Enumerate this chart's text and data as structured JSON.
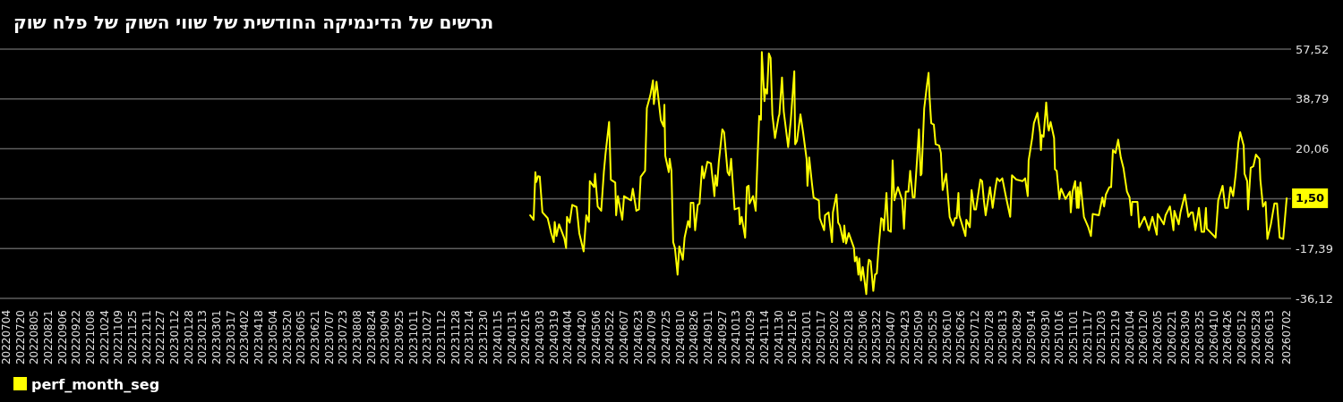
{
  "chart_data": {
    "type": "line",
    "title": "תרשים של הדינמיקה החודשית של שווי השוק של פלח שוק",
    "x": [
      "2024-02-21",
      "2024-02-25",
      "2024-02-27",
      "2024-02-28",
      "2024-03-01",
      "2024-03-03",
      "2024-03-06",
      "2024-03-12",
      "2024-03-16",
      "2024-03-19",
      "2024-03-20",
      "2024-03-22",
      "2024-03-25",
      "2024-03-31",
      "2024-04-02",
      "2024-04-03",
      "2024-04-06",
      "2024-04-09",
      "2024-04-14",
      "2024-04-17",
      "2024-04-22",
      "2024-04-25",
      "2024-04-28",
      "2024-04-29",
      "2024-05-04",
      "2024-05-05",
      "2024-05-08",
      "2024-05-12",
      "2024-05-15",
      "2024-05-17",
      "2024-05-21",
      "2024-05-23",
      "2024-05-28",
      "2024-05-29",
      "2024-05-31",
      "2024-06-05",
      "2024-06-07",
      "2024-06-15",
      "2024-06-17",
      "2024-06-21",
      "2024-06-24",
      "2024-06-26",
      "2024-07-01",
      "2024-07-03",
      "2024-07-07",
      "2024-07-10",
      "2024-07-11",
      "2024-07-14",
      "2024-07-19",
      "2024-07-22",
      "2024-07-23",
      "2024-07-24",
      "2024-07-28",
      "2024-07-29",
      "2024-07-31",
      "2024-08-02",
      "2024-08-04",
      "2024-08-07",
      "2024-08-09",
      "2024-08-13",
      "2024-08-15",
      "2024-08-19",
      "2024-08-21",
      "2024-08-22",
      "2024-08-25",
      "2024-08-27",
      "2024-08-30",
      "2024-09-01",
      "2024-09-04",
      "2024-09-06",
      "2024-09-10",
      "2024-09-14",
      "2024-09-18",
      "2024-09-19",
      "2024-09-21",
      "2024-09-23",
      "2024-09-27",
      "2024-09-29",
      "2024-10-03",
      "2024-10-05",
      "2024-10-07",
      "2024-10-11",
      "2024-10-16",
      "2024-10-17",
      "2024-10-19",
      "2024-10-23",
      "2024-10-25",
      "2024-10-27",
      "2024-10-28",
      "2024-11-01",
      "2024-11-04",
      "2024-11-06",
      "2024-11-08",
      "2024-11-10",
      "2024-11-11",
      "2024-11-14",
      "2024-11-15",
      "2024-11-17",
      "2024-11-19",
      "2024-11-21",
      "2024-11-23",
      "2024-11-26",
      "2024-11-30",
      "2024-12-01",
      "2024-12-04",
      "2024-12-06",
      "2024-12-11",
      "2024-12-14",
      "2024-12-18",
      "2024-12-19",
      "2024-12-21",
      "2024-12-25",
      "2024-12-28",
      "2025-01-01",
      "2025-01-02",
      "2025-01-04",
      "2025-01-07",
      "2025-01-09",
      "2025-01-15",
      "2025-01-16",
      "2025-01-21",
      "2025-01-22",
      "2025-01-26",
      "2025-01-30",
      "2025-01-31",
      "2025-02-04",
      "2025-02-06",
      "2025-02-08",
      "2025-02-12",
      "2025-02-13",
      "2025-02-15",
      "2025-02-18",
      "2025-02-24",
      "2025-02-25",
      "2025-02-27",
      "2025-03-01",
      "2025-03-02",
      "2025-03-04",
      "2025-03-06",
      "2025-03-10",
      "2025-03-12",
      "2025-03-13",
      "2025-03-15",
      "2025-03-18",
      "2025-03-20",
      "2025-03-22",
      "2025-03-24",
      "2025-03-27",
      "2025-03-29",
      "2025-03-30",
      "2025-04-02",
      "2025-04-04",
      "2025-04-07",
      "2025-04-09",
      "2025-04-11",
      "2025-04-15",
      "2025-04-20",
      "2025-04-22",
      "2025-04-24",
      "2025-04-27",
      "2025-04-29",
      "2025-05-02",
      "2025-05-04",
      "2025-05-07",
      "2025-05-09",
      "2025-05-11",
      "2025-05-12",
      "2025-05-15",
      "2025-05-18",
      "2025-05-20",
      "2025-05-21",
      "2025-05-23",
      "2025-05-26",
      "2025-05-28",
      "2025-06-01",
      "2025-06-03",
      "2025-06-05",
      "2025-06-09",
      "2025-06-13",
      "2025-06-17",
      "2025-06-19",
      "2025-06-21",
      "2025-06-23",
      "2025-06-24",
      "2025-07-01",
      "2025-07-02",
      "2025-07-06",
      "2025-07-08",
      "2025-07-11",
      "2025-07-13",
      "2025-07-18",
      "2025-07-20",
      "2025-07-22",
      "2025-07-24",
      "2025-07-29",
      "2025-08-01",
      "2025-08-04",
      "2025-08-06",
      "2025-08-09",
      "2025-08-12",
      "2025-08-16",
      "2025-08-21",
      "2025-08-23",
      "2025-08-28",
      "2025-09-04",
      "2025-09-07",
      "2025-09-10",
      "2025-09-11",
      "2025-09-15",
      "2025-09-17",
      "2025-09-21",
      "2025-09-24",
      "2025-09-25",
      "2025-09-26",
      "2025-09-28",
      "2025-10-01",
      "2025-10-03",
      "2025-10-04",
      "2025-10-06",
      "2025-10-10",
      "2025-10-11",
      "2025-10-13",
      "2025-10-16",
      "2025-10-18",
      "2025-10-23",
      "2025-10-28",
      "2025-10-29",
      "2025-10-31",
      "2025-11-03",
      "2025-11-05",
      "2025-11-06",
      "2025-11-07",
      "2025-11-09",
      "2025-11-13",
      "2025-11-18",
      "2025-11-21",
      "2025-11-23",
      "2025-11-30",
      "2025-12-04",
      "2025-12-06",
      "2025-12-08",
      "2025-12-12",
      "2025-12-14",
      "2025-12-16",
      "2025-12-19",
      "2025-12-22",
      "2025-12-25",
      "2025-12-28",
      "2026-01-01",
      "2026-01-04",
      "2026-01-06",
      "2026-01-07",
      "2026-01-13",
      "2026-01-15",
      "2026-01-21",
      "2026-01-26",
      "2026-01-30",
      "2026-02-04",
      "2026-02-05",
      "2026-02-12",
      "2026-02-14",
      "2026-02-19",
      "2026-02-23",
      "2026-02-24",
      "2026-03-01",
      "2026-03-03",
      "2026-03-08",
      "2026-03-12",
      "2026-03-15",
      "2026-03-17",
      "2026-03-20",
      "2026-03-24",
      "2026-03-27",
      "2026-03-30",
      "2026-04-01",
      "2026-04-02",
      "2026-04-12",
      "2026-04-15",
      "2026-04-20",
      "2026-04-23",
      "2026-04-26",
      "2026-04-29",
      "2026-05-02",
      "2026-05-05",
      "2026-05-08",
      "2026-05-10",
      "2026-05-14",
      "2026-05-15",
      "2026-05-18",
      "2026-05-19",
      "2026-05-22",
      "2026-05-25",
      "2026-05-28",
      "2026-06-01",
      "2026-06-02",
      "2026-06-05",
      "2026-06-08",
      "2026-06-10",
      "2026-06-14",
      "2026-06-18",
      "2026-06-21",
      "2026-06-24",
      "2026-06-28",
      "2026-07-02"
    ],
    "series": [
      {
        "name": "perf_month_seg",
        "color": "#ffff00",
        "values": [
          -4.9,
          -6.6,
          11.3,
          7.6,
          9.8,
          9.6,
          -3.8,
          -6.0,
          -11.6,
          -15.0,
          -7.4,
          -12.7,
          -8.3,
          -13.6,
          -17.2,
          -5.5,
          -7.7,
          -1.0,
          -1.8,
          -11.6,
          -18.5,
          -4.9,
          -7.4,
          7.9,
          5.7,
          10.7,
          -1.6,
          -3.2,
          11.3,
          18.5,
          30.2,
          8.5,
          7.4,
          -4.9,
          2.3,
          -6.6,
          2.3,
          0.7,
          5.1,
          -3.2,
          -2.7,
          9.6,
          11.8,
          35.4,
          40.2,
          45.8,
          36.9,
          45.3,
          30.8,
          28.5,
          36.6,
          17.4,
          11.3,
          16.3,
          11.8,
          -15.0,
          -17.2,
          -27.2,
          -16.6,
          -21.6,
          -13.3,
          -7.1,
          -9.4,
          -0.2,
          -0.2,
          -10.5,
          -1.0,
          -0.5,
          13.5,
          9.0,
          15.2,
          14.6,
          2.3,
          10.1,
          6.2,
          15.2,
          27.4,
          26.3,
          11.3,
          10.1,
          16.3,
          -2.7,
          -2.1,
          -8.3,
          -5.5,
          -13.3,
          5.7,
          6.2,
          -0.5,
          2.3,
          -3.2,
          15.7,
          32.4,
          31.0,
          56.4,
          38.0,
          42.5,
          40.8,
          55.9,
          54.2,
          33.0,
          24.1,
          31.9,
          33.0,
          46.9,
          34.1,
          20.7,
          30.8,
          49.2,
          21.8,
          23.0,
          33.0,
          26.3,
          16.3,
          6.2,
          16.8,
          7.4,
          1.8,
          0.7,
          -6.0,
          -10.5,
          -4.9,
          -3.8,
          -15.0,
          -3.8,
          2.9,
          -7.7,
          -8.8,
          -15.0,
          -8.8,
          -15.5,
          -11.6,
          -17.2,
          -22.2,
          -20.5,
          -27.2,
          -21.1,
          -29.4,
          -24.4,
          -34.5,
          -23.9,
          -21.6,
          -22.2,
          -33.3,
          -27.2,
          -26.7,
          -17.2,
          -6.0,
          -6.6,
          -10.5,
          3.5,
          -10.5,
          -11.1,
          15.7,
          0.7,
          5.7,
          0.7,
          -9.9,
          4.0,
          4.0,
          11.8,
          1.8,
          1.8,
          16.8,
          27.4,
          10.1,
          10.7,
          35.2,
          43.6,
          48.6,
          40.2,
          29.7,
          29.1,
          21.8,
          21.3,
          18.5,
          4.6,
          10.7,
          -5.5,
          -8.8,
          -6.0,
          -6.0,
          3.5,
          -4.9,
          -12.7,
          -6.6,
          -9.4,
          4.6,
          -2.7,
          -2.7,
          8.5,
          7.9,
          0.7,
          -4.9,
          5.7,
          -2.1,
          5.1,
          9.0,
          7.9,
          9.0,
          2.3,
          -5.5,
          10.1,
          8.5,
          7.9,
          9.0,
          2.3,
          15.7,
          24.1,
          29.7,
          33.6,
          26.3,
          19.6,
          25.2,
          24.6,
          37.5,
          28.5,
          26.9,
          30.2,
          24.1,
          12.4,
          11.8,
          1.2,
          5.1,
          1.2,
          4.0,
          -3.8,
          4.0,
          7.9,
          -2.1,
          5.7,
          -2.1,
          7.4,
          -5.5,
          -9.4,
          -12.7,
          -4.4,
          -4.9,
          1.8,
          -1.6,
          2.9,
          5.7,
          5.7,
          19.6,
          18.5,
          23.5,
          16.8,
          12.9,
          4.0,
          1.8,
          -4.9,
          0.1,
          0.1,
          -9.4,
          -5.5,
          -10.5,
          -5.5,
          -12.2,
          -4.4,
          -8.3,
          -4.9,
          -1.6,
          -10.5,
          -3.2,
          -8.3,
          -3.8,
          2.9,
          -5.5,
          -3.8,
          -3.8,
          -10.5,
          -2.1,
          -11.1,
          -11.1,
          -2.1,
          -9.9,
          -13.3,
          0.7,
          6.2,
          -2.1,
          -2.1,
          5.7,
          2.3,
          10.7,
          22.4,
          26.3,
          21.3,
          10.7,
          7.9,
          -2.7,
          12.9,
          13.5,
          17.9,
          16.3,
          8.5,
          -1.6,
          0.1,
          -13.8,
          -8.3,
          -0.5,
          -0.5,
          -13.3,
          -13.8,
          1.5
        ]
      }
    ],
    "xlim": [
      "2022-06-27",
      "2026-07-07"
    ],
    "xticks": [
      {
        "value": "2022-07-04",
        "label": "20220704"
      },
      {
        "value": "2022-07-20",
        "label": "20220720"
      },
      {
        "value": "2022-08-05",
        "label": "20220805"
      },
      {
        "value": "2022-08-21",
        "label": "20220821"
      },
      {
        "value": "2022-09-06",
        "label": "20220906"
      },
      {
        "value": "2022-09-22",
        "label": "20220922"
      },
      {
        "value": "2022-10-08",
        "label": "20221008"
      },
      {
        "value": "2022-10-24",
        "label": "20221024"
      },
      {
        "value": "2022-11-09",
        "label": "20221109"
      },
      {
        "value": "2022-11-25",
        "label": "20221125"
      },
      {
        "value": "2022-12-11",
        "label": "20221211"
      },
      {
        "value": "2022-12-27",
        "label": "20221227"
      },
      {
        "value": "2023-01-12",
        "label": "20230112"
      },
      {
        "value": "2023-01-28",
        "label": "20230128"
      },
      {
        "value": "2023-02-13",
        "label": "20230213"
      },
      {
        "value": "2023-03-01",
        "label": "20230301"
      },
      {
        "value": "2023-03-17",
        "label": "20230317"
      },
      {
        "value": "2023-04-02",
        "label": "20230402"
      },
      {
        "value": "2023-04-18",
        "label": "20230418"
      },
      {
        "value": "2023-05-04",
        "label": "20230504"
      },
      {
        "value": "2023-05-20",
        "label": "20230520"
      },
      {
        "value": "2023-06-05",
        "label": "20230605"
      },
      {
        "value": "2023-06-21",
        "label": "20230621"
      },
      {
        "value": "2023-07-07",
        "label": "20230707"
      },
      {
        "value": "2023-07-23",
        "label": "20230723"
      },
      {
        "value": "2023-08-08",
        "label": "20230808"
      },
      {
        "value": "2023-08-24",
        "label": "20230824"
      },
      {
        "value": "2023-09-09",
        "label": "20230909"
      },
      {
        "value": "2023-09-25",
        "label": "20230925"
      },
      {
        "value": "2023-10-11",
        "label": "20231011"
      },
      {
        "value": "2023-10-27",
        "label": "20231027"
      },
      {
        "value": "2023-11-12",
        "label": "20231112"
      },
      {
        "value": "2023-11-28",
        "label": "20231128"
      },
      {
        "value": "2023-12-14",
        "label": "20231214"
      },
      {
        "value": "2023-12-30",
        "label": "20231230"
      },
      {
        "value": "2024-01-15",
        "label": "20240115"
      },
      {
        "value": "2024-01-31",
        "label": "20240131"
      },
      {
        "value": "2024-02-16",
        "label": "20240216"
      },
      {
        "value": "2024-03-03",
        "label": "20240303"
      },
      {
        "value": "2024-03-19",
        "label": "20240319"
      },
      {
        "value": "2024-04-04",
        "label": "20240404"
      },
      {
        "value": "2024-04-20",
        "label": "20240420"
      },
      {
        "value": "2024-05-06",
        "label": "20240506"
      },
      {
        "value": "2024-05-22",
        "label": "20240522"
      },
      {
        "value": "2024-06-07",
        "label": "20240607"
      },
      {
        "value": "2024-06-23",
        "label": "20240623"
      },
      {
        "value": "2024-07-09",
        "label": "20240709"
      },
      {
        "value": "2024-07-25",
        "label": "20240725"
      },
      {
        "value": "2024-08-10",
        "label": "20240810"
      },
      {
        "value": "2024-08-26",
        "label": "20240826"
      },
      {
        "value": "2024-09-11",
        "label": "20240911"
      },
      {
        "value": "2024-09-27",
        "label": "20240927"
      },
      {
        "value": "2024-10-13",
        "label": "20241013"
      },
      {
        "value": "2024-10-29",
        "label": "20241029"
      },
      {
        "value": "2024-11-14",
        "label": "20241114"
      },
      {
        "value": "2024-11-30",
        "label": "20241130"
      },
      {
        "value": "2024-12-16",
        "label": "20241216"
      },
      {
        "value": "2025-01-01",
        "label": "20250101"
      },
      {
        "value": "2025-01-17",
        "label": "20250117"
      },
      {
        "value": "2025-02-02",
        "label": "20250202"
      },
      {
        "value": "2025-02-18",
        "label": "20250218"
      },
      {
        "value": "2025-03-06",
        "label": "20250306"
      },
      {
        "value": "2025-03-22",
        "label": "20250322"
      },
      {
        "value": "2025-04-07",
        "label": "20250407"
      },
      {
        "value": "2025-04-23",
        "label": "20250423"
      },
      {
        "value": "2025-05-09",
        "label": "20250509"
      },
      {
        "value": "2025-05-25",
        "label": "20250525"
      },
      {
        "value": "2025-06-10",
        "label": "20250610"
      },
      {
        "value": "2025-06-26",
        "label": "20250626"
      },
      {
        "value": "2025-07-12",
        "label": "20250712"
      },
      {
        "value": "2025-07-28",
        "label": "20250728"
      },
      {
        "value": "2025-08-13",
        "label": "20250813"
      },
      {
        "value": "2025-08-29",
        "label": "20250829"
      },
      {
        "value": "2025-09-14",
        "label": "20250914"
      },
      {
        "value": "2025-09-30",
        "label": "20250930"
      },
      {
        "value": "2025-10-16",
        "label": "20251016"
      },
      {
        "value": "2025-11-01",
        "label": "20251101"
      },
      {
        "value": "2025-11-17",
        "label": "20251117"
      },
      {
        "value": "2025-12-03",
        "label": "20251203"
      },
      {
        "value": "2025-12-19",
        "label": "20251219"
      },
      {
        "value": "2026-01-04",
        "label": "20260104"
      },
      {
        "value": "2026-01-20",
        "label": "20260120"
      },
      {
        "value": "2026-02-05",
        "label": "20260205"
      },
      {
        "value": "2026-02-21",
        "label": "20260221"
      },
      {
        "value": "2026-03-09",
        "label": "20260309"
      },
      {
        "value": "2026-03-25",
        "label": "20260325"
      },
      {
        "value": "2026-04-10",
        "label": "20260410"
      },
      {
        "value": "2026-04-26",
        "label": "20260426"
      },
      {
        "value": "2026-05-12",
        "label": "20260512"
      },
      {
        "value": "2026-05-28",
        "label": "20260528"
      },
      {
        "value": "2026-06-13",
        "label": "20260613"
      },
      {
        "value": "2026-07-02",
        "label": "20260702"
      }
    ],
    "ylim": [
      -36.12,
      57.52
    ],
    "yticks": [
      {
        "value": 57.52,
        "label": "57,52"
      },
      {
        "value": 38.79,
        "label": "38,79"
      },
      {
        "value": 20.06,
        "label": "20,06"
      },
      {
        "value": 1.33,
        "label": null
      },
      {
        "value": -17.39,
        "label": "-17,39"
      },
      {
        "value": -36.12,
        "label": "-36,12"
      }
    ],
    "grid": "y",
    "legend": "bottom",
    "annotations": [
      {
        "text": "1,50",
        "x": "2026-07-02",
        "y": 1.5
      }
    ]
  }
}
